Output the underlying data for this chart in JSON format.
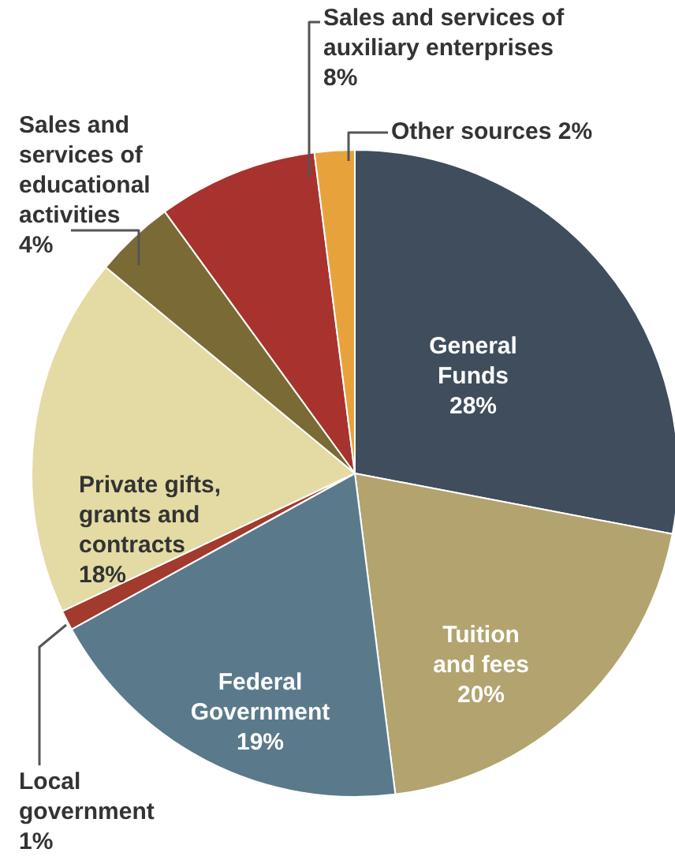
{
  "chart_data": {
    "type": "pie",
    "categories": [
      "General Funds",
      "Tuition and fees",
      "Federal Government",
      "Local government",
      "Private gifts, grants and contracts",
      "Sales and services of educational activities",
      "Sales and services of auxiliary enterprises",
      "Other sources"
    ],
    "values": [
      28,
      20,
      19,
      1,
      18,
      4,
      8,
      2
    ],
    "value_labels": [
      "28%",
      "20%",
      "19%",
      "1%",
      "18%",
      "4%",
      "8%",
      "2%"
    ],
    "colors": [
      "#3f4d5c",
      "#b3a36e",
      "#5a7a8c",
      "#a33a2e",
      "#e3dba3",
      "#7a6a35",
      "#a8322e",
      "#e8a23c"
    ]
  }
}
